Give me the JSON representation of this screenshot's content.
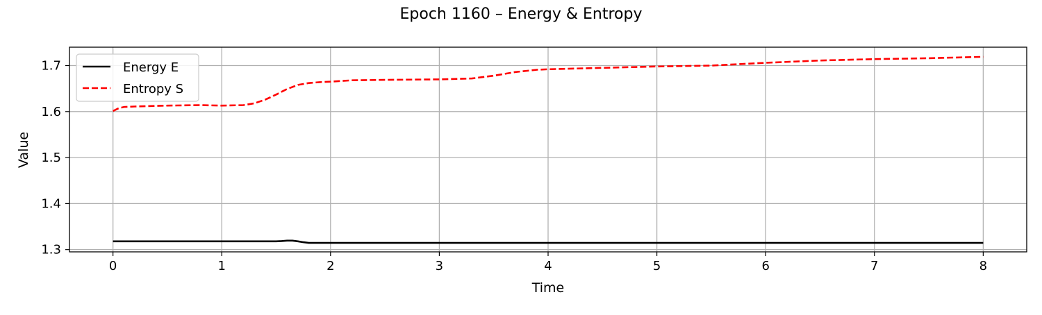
{
  "chart_data": {
    "type": "line",
    "title": "Epoch 1160 – Energy & Entropy",
    "xlabel": "Time",
    "ylabel": "Value",
    "xlim": [
      -0.4,
      8.4
    ],
    "ylim": [
      1.295,
      1.74
    ],
    "xticks": [
      0,
      1,
      2,
      3,
      4,
      5,
      6,
      7,
      8
    ],
    "xtick_labels": [
      "0",
      "1",
      "2",
      "3",
      "4",
      "5",
      "6",
      "7",
      "8"
    ],
    "yticks": [
      1.3,
      1.4,
      1.5,
      1.6,
      1.7
    ],
    "ytick_labels": [
      "1.3",
      "1.4",
      "1.5",
      "1.6",
      "1.7"
    ],
    "grid": true,
    "legend_position": "upper-left",
    "series": [
      {
        "name": "Energy E",
        "color": "#000000",
        "style": "solid",
        "x": [
          0,
          0.3,
          0.6,
          0.75,
          0.9,
          1.2,
          1.5,
          1.55,
          1.6,
          1.65,
          1.7,
          1.75,
          1.8,
          1.85,
          2,
          3,
          4,
          5,
          6,
          7,
          8
        ],
        "y": [
          1.318,
          1.318,
          1.318,
          1.318,
          1.318,
          1.318,
          1.318,
          1.3185,
          1.3195,
          1.3195,
          1.318,
          1.316,
          1.3145,
          1.3145,
          1.3145,
          1.3145,
          1.3145,
          1.3145,
          1.3145,
          1.3145,
          1.3145
        ]
      },
      {
        "name": "Entropy S",
        "color": "#ff0000",
        "style": "dashed",
        "x": [
          0,
          0.05,
          0.1,
          0.2,
          0.5,
          0.8,
          1.0,
          1.2,
          1.3,
          1.4,
          1.5,
          1.6,
          1.7,
          1.8,
          1.9,
          2.0,
          2.2,
          2.5,
          3.0,
          3.3,
          3.5,
          3.7,
          3.9,
          4.0,
          4.5,
          5.0,
          5.5,
          6.0,
          6.5,
          7.0,
          7.5,
          8.0
        ],
        "y": [
          1.601,
          1.607,
          1.61,
          1.611,
          1.613,
          1.614,
          1.613,
          1.614,
          1.618,
          1.626,
          1.637,
          1.649,
          1.658,
          1.662,
          1.664,
          1.665,
          1.668,
          1.669,
          1.67,
          1.672,
          1.678,
          1.686,
          1.691,
          1.692,
          1.695,
          1.698,
          1.7,
          1.706,
          1.711,
          1.714,
          1.716,
          1.719
        ]
      }
    ]
  }
}
